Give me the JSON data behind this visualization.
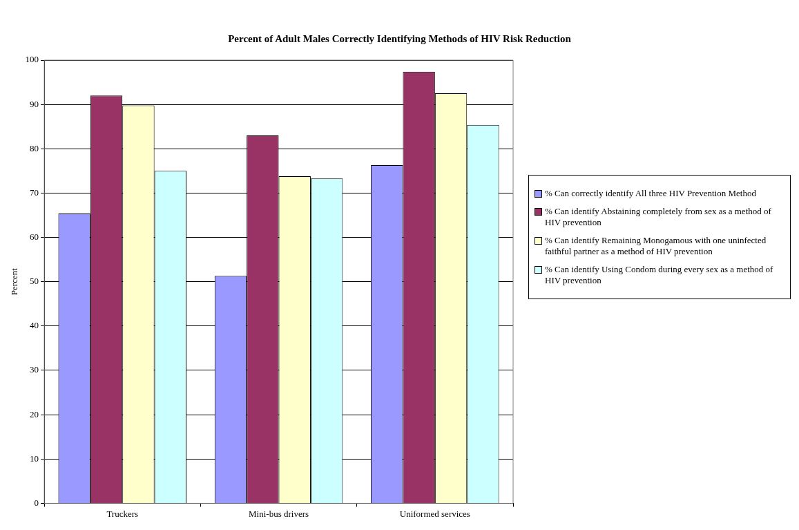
{
  "chart_data": {
    "type": "bar",
    "title": "Percent of Adult Males Correctly Identifying Methods of HIV Risk Reduction",
    "ylabel": "Percent",
    "categories": [
      "Truckers",
      "Mini-bus drivers",
      "Uniformed services"
    ],
    "series": [
      {
        "name": "% Can correctly identify All three HIV Prevention Method",
        "color": "#9999ff",
        "values": [
          65.4,
          51.3,
          76.3
        ]
      },
      {
        "name": "% Can identify Abstaining completely from sex as a method of HIV prevention",
        "color": "#993366",
        "values": [
          92,
          83,
          97.4
        ]
      },
      {
        "name": "% Can identify Remaining Monogamous with one uninfected faithful partner as a method of HIV prevention",
        "color": "#ffffcc",
        "values": [
          89.8,
          73.8,
          92.5
        ]
      },
      {
        "name": "% Can identify Using Condom during every sex as a method of HIV prevention",
        "color": "#ccffff",
        "values": [
          75,
          73.3,
          85.4
        ]
      }
    ],
    "ylim": [
      0,
      100
    ],
    "yticks": [
      0,
      10,
      20,
      30,
      40,
      50,
      60,
      70,
      80,
      90,
      100
    ],
    "grid": "y",
    "legend": "right"
  }
}
